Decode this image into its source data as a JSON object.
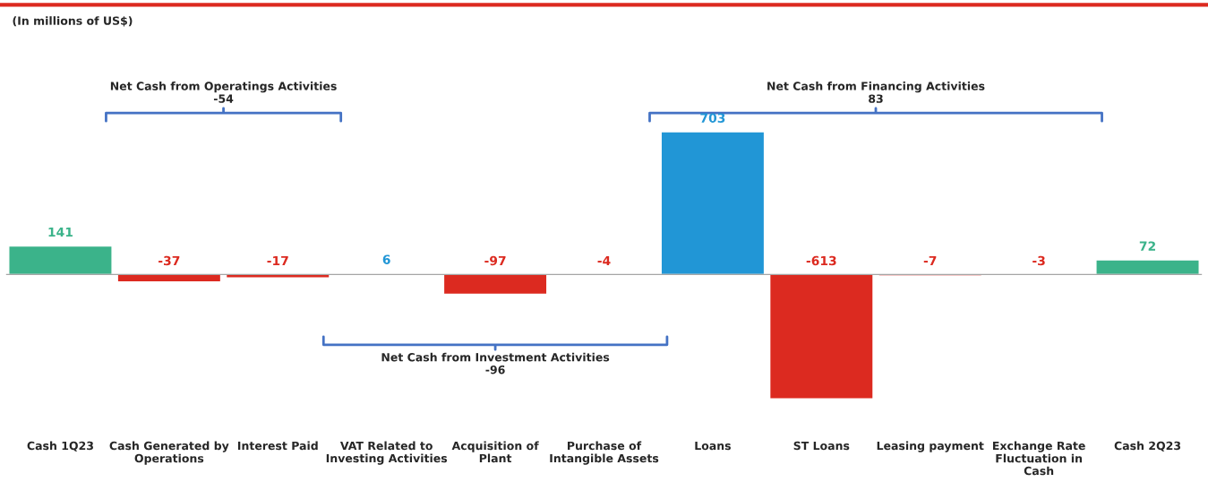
{
  "chart_data": {
    "type": "bar",
    "subtitle": "(In millions of US$)",
    "categories": [
      "Cash 1Q23",
      "Cash Generated by\nOperations",
      "Interest Paid",
      "VAT Related to\nInvesting Activities",
      "Acquisition of\nPlant",
      "Purchase of\nIntangible Assets",
      "Loans",
      "ST Loans",
      "Leasing payment",
      "Exchange Rate\nFluctuation in\nCash",
      "Cash 2Q23"
    ],
    "values": [
      141,
      -37,
      -17,
      6,
      -97,
      -4,
      703,
      -613,
      -7,
      -3,
      72
    ],
    "colors": [
      "#3bb38a",
      "#dc2a20",
      "#dc2a20",
      "#2196d6",
      "#dc2a20",
      "#dc2a20",
      "#2196d6",
      "#dc2a20",
      "#dc2a20",
      "#dc2a20",
      "#3bb38a"
    ],
    "data_labels": true,
    "legend": false,
    "grid": false,
    "annotations": [
      "Net Cash from Operatings Activities\n-54",
      "Net Cash from Investment Activities\n-96",
      "Net Cash from Financing Activities\n83"
    ]
  }
}
